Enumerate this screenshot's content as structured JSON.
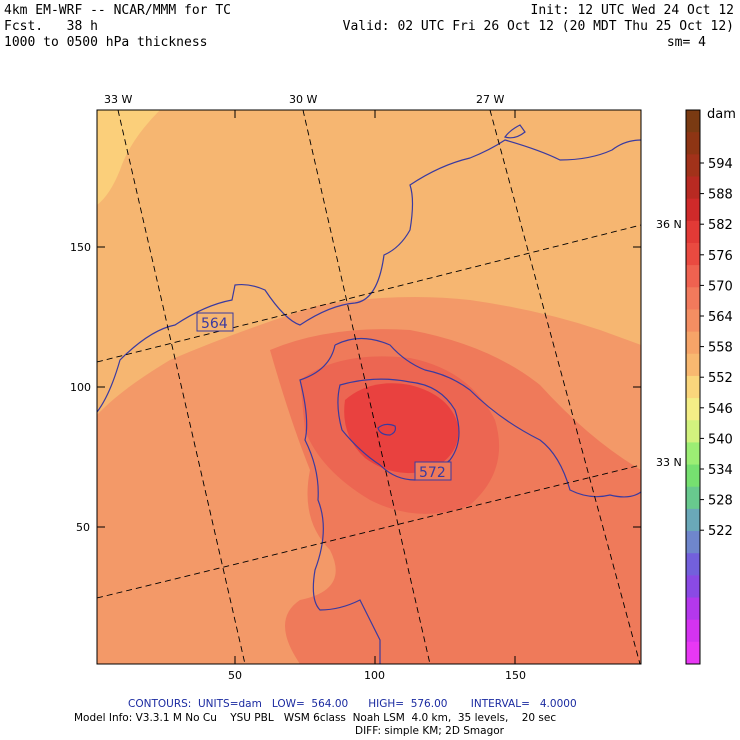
{
  "header": {
    "model": "4km EM-WRF -- NCAR/MMM for TC",
    "forecast": "Fcst.   38 h",
    "field": "1000 to 0500 hPa thickness",
    "init": "Init: 12 UTC Wed 24 Oct 12",
    "valid": "Valid: 02 UTC Fri 26 Oct 12 (20 MDT Thu 25 Oct 12)",
    "smoothing": "sm= 4"
  },
  "map": {
    "lon_labels": [
      "33 W",
      "30 W",
      "27 W"
    ],
    "lat_labels": [
      "36 N",
      "33 N"
    ],
    "x_ticks": [
      "50",
      "100",
      "150"
    ],
    "y_ticks": [
      "150",
      "100",
      "50"
    ],
    "contour_labels": [
      "564",
      "572"
    ],
    "colors": {
      "bg_564": "#f6b671",
      "bg_567": "#f39968",
      "bg_570": "#ef7a5a",
      "bg_573": "#ec6652",
      "core_576": "#e9413f",
      "warm_north": "#fbcf7a",
      "contour": "#3a3aa0",
      "frame": "#000000"
    }
  },
  "colorbar": {
    "unit": "dam",
    "labels": [
      "594",
      "588",
      "582",
      "576",
      "570",
      "564",
      "558",
      "552",
      "546",
      "540",
      "534",
      "528",
      "522"
    ],
    "colors": [
      "#7a3a12",
      "#8e3514",
      "#a2321a",
      "#b82a22",
      "#cf2a2a",
      "#e23a36",
      "#ea4a40",
      "#ef6250",
      "#f27a5c",
      "#f48e62",
      "#f6a468",
      "#f8b870",
      "#fad67c",
      "#f4ee86",
      "#d2f27e",
      "#9cee74",
      "#76e070",
      "#68c98e",
      "#6aa8b8",
      "#6f86cc",
      "#7360dc",
      "#8a4ae4",
      "#b438ec",
      "#d433f0",
      "#e838f4"
    ]
  },
  "footer": {
    "contours": "CONTOURS:  UNITS=dam   LOW=  564.00      HIGH=  576.00       INTERVAL=   4.0000",
    "model_info": "Model Info: V3.3.1 M No Cu    YSU PBL   WSM 6class  Noah LSM  4.0 km,  35 levels,    20 sec",
    "diff": "DIFF: simple KM; 2D Smagor"
  }
}
